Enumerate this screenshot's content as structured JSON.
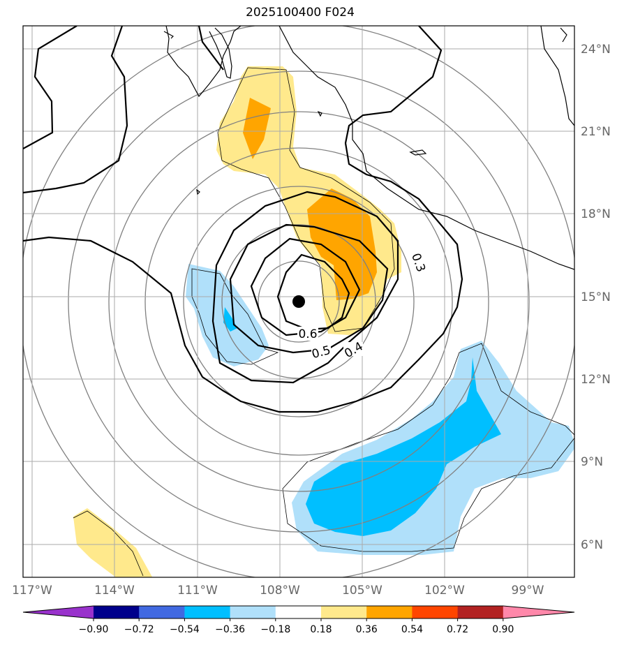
{
  "title": "2025100400 F024",
  "lon_labels": [
    "117°W",
    "114°W",
    "111°W",
    "108°W",
    "105°W",
    "102°W",
    "99°W"
  ],
  "lat_labels": [
    "24°N",
    "21°N",
    "18°N",
    "15°N",
    "12°N",
    "9°N",
    "6°N"
  ],
  "contour_labels": [
    "0.3",
    "0.4",
    "0.5",
    "0.6"
  ],
  "colorbar": {
    "labels": [
      "−0.90",
      "−0.72",
      "−0.54",
      "−0.36",
      "−0.18",
      "0.18",
      "0.36",
      "0.54",
      "0.72",
      "0.90"
    ],
    "colors": [
      "#9932cc",
      "#00008b",
      "#4169e1",
      "#00bfff",
      "#b0e0fa",
      "#ffffff",
      "#ffe98c",
      "#ffa500",
      "#ff4500",
      "#b22222",
      "#ff88aa"
    ]
  },
  "center_marker": {
    "lon": -107.3,
    "lat": 14.8
  }
}
